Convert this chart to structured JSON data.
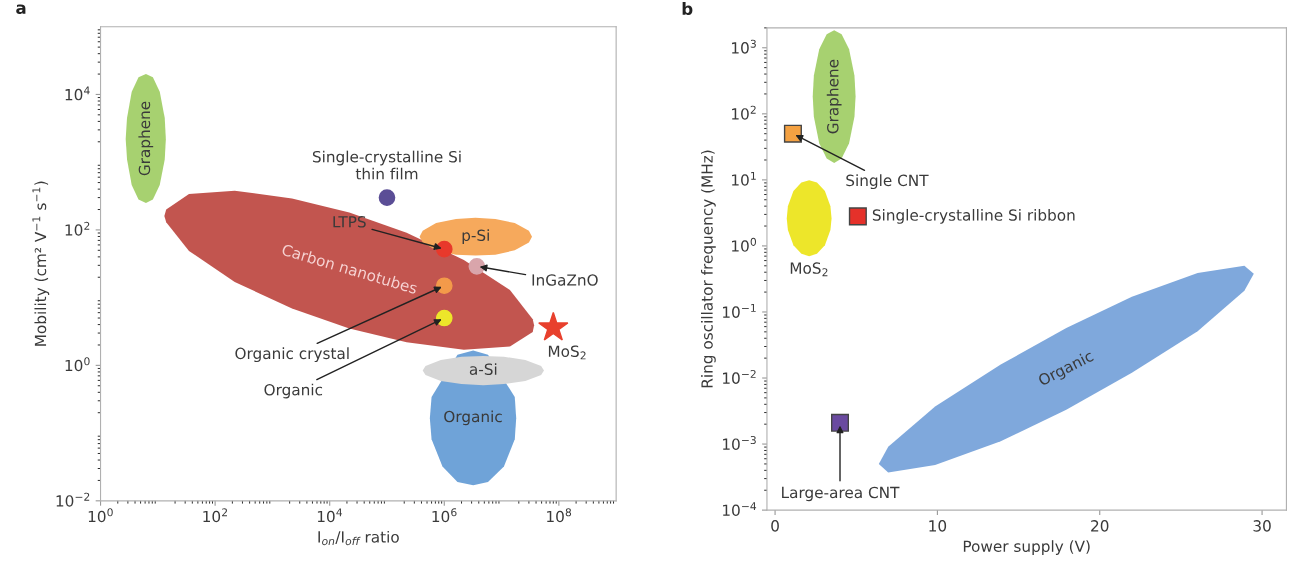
{
  "chart_data": [
    {
      "type": "scatter",
      "title": "a",
      "xlabel": "I$_{on}$/I$_{off}$ ratio",
      "ylabel": "Mobility (cm² V$^{−1}$ s$^{−1}$)",
      "log": "xy",
      "xlim": [
        1,
        1000000000
      ],
      "ylim": [
        0.01,
        100000
      ],
      "xticks": [
        {
          "value": 1,
          "label": "10$^{0}$"
        },
        {
          "value": 100,
          "label": "10$^{2}$"
        },
        {
          "value": 10000,
          "label": "10$^{4}$"
        },
        {
          "value": 1000000,
          "label": "10$^{6}$"
        },
        {
          "value": 100000000,
          "label": "10$^{8}$"
        }
      ],
      "yticks": [
        {
          "value": 0.01,
          "label": "10$^{−2}$"
        },
        {
          "value": 1,
          "label": "10$^{0}$"
        },
        {
          "value": 100,
          "label": "10$^{2}$"
        },
        {
          "value": 10000,
          "label": "10$^{4}$"
        }
      ],
      "series": [
        {
          "type": "area",
          "name": "Graphene",
          "color": "#a7d170",
          "x": [
            2.9,
            3.5,
            4.6,
            6.2,
            8.2,
            10.8,
            13.2,
            13.8,
            13.2,
            10.8,
            8.2,
            6.2,
            4.6,
            3.5,
            2.9,
            2.75
          ],
          "values": [
            4500,
            11000,
            18000,
            20000,
            18000,
            11000,
            4500,
            2200,
            1100,
            460,
            280,
            250,
            280,
            460,
            1100,
            2200
          ]
        },
        {
          "type": "area",
          "name": "Carbon nanotubes",
          "color": "#c2554f",
          "x": [
            14,
            35,
            220,
            2200,
            22000,
            220000,
            2200000,
            14000000,
            35000000,
            37000000,
            35000000,
            14000000,
            2200000,
            220000,
            22000,
            2200,
            220,
            35,
            14,
            13
          ],
          "values": [
            200,
            340,
            380,
            290,
            180,
            91,
            36,
            13,
            4.8,
            3.9,
            3.1,
            1.9,
            1.7,
            2.2,
            3.5,
            6.9,
            17,
            49,
            130,
            160
          ]
        },
        {
          "type": "area",
          "name": "Organic",
          "color": "#6fa3d8",
          "x": [
            600000,
            930000,
            1700000,
            3200000,
            5800000,
            11000000,
            17000000,
            18000000,
            17000000,
            11000000,
            5800000,
            3200000,
            1700000,
            930000,
            600000,
            560000
          ],
          "values": [
            0.34,
            null,
            1.44,
            1.66,
            1.44,
            null,
            0.34,
            0.166,
            0.081,
            0.032,
            0.019,
            0.017,
            0.019,
            0.032,
            0.081,
            0.166
          ]
        },
        {
          "type": "area",
          "name": "a-Si",
          "color": "#d6d6d6",
          "x": [
            470000,
            870000,
            2000000,
            4800000,
            11000000,
            26000000,
            49000000,
            55000000,
            49000000,
            26000000,
            11000000,
            4800000,
            2000000,
            870000,
            470000,
            420000
          ],
          "values": [
            0.98,
            1.2,
            1.34,
            1.38,
            1.34,
            1.2,
            0.98,
            0.84,
            0.72,
            0.59,
            0.53,
            0.51,
            0.53,
            0.59,
            0.72,
            0.84
          ]
        },
        {
          "type": "area",
          "name": "p-Si",
          "color": "#f6a95c",
          "x": [
            420000,
            720000,
            1600000,
            3500000,
            7800000,
            17000000,
            30000000,
            34000000,
            30000000,
            17000000,
            7800000,
            3500000,
            1600000,
            720000,
            420000,
            370000
          ],
          "values": [
            97,
            126,
            145,
            151,
            145,
            126,
            97,
            79,
            65,
            50,
            43,
            42,
            43,
            50,
            65,
            79
          ]
        },
        {
          "marker": "circle",
          "color": "#5b4e96",
          "x": [
            100000
          ],
          "values": [
            300
          ]
        },
        {
          "marker": "circle",
          "color": "#e8392b",
          "x": [
            1000000
          ],
          "values": [
            52
          ]
        },
        {
          "marker": "circle",
          "color": "#d9a5ab",
          "x": [
            3700000
          ],
          "values": [
            29
          ]
        },
        {
          "marker": "circle",
          "color": "#f39a4a",
          "x": [
            1000000
          ],
          "values": [
            15
          ]
        },
        {
          "marker": "circle",
          "color": "#ede62a",
          "x": [
            1000000
          ],
          "values": [
            5.0
          ]
        },
        {
          "marker": "star",
          "color": "#e8402d",
          "x": [
            80000000
          ],
          "values": [
            3.6
          ]
        }
      ],
      "annotations": [
        {
          "text": "Single-crystalline Si\nthin film",
          "x": 100000,
          "y": 300
        },
        {
          "text": "LTPS",
          "x": 1000000,
          "y": 52
        },
        {
          "text": "InGaZnO",
          "x": 3700000,
          "y": 29
        },
        {
          "text": "Organic crystal",
          "x": 1000000,
          "y": 15
        },
        {
          "text": "Organic",
          "x": 1000000,
          "y": 5.0
        },
        {
          "text": "MoS$_{2}$",
          "x": 80000000,
          "y": 3.6
        }
      ]
    },
    {
      "type": "scatter",
      "title": "b",
      "xlabel": "Power supply (V)",
      "ylabel": "Ring oscillator frequency (MHz)",
      "log": "y",
      "xlim": [
        -0.5,
        31.5
      ],
      "ylim": [
        0.0001,
        2000
      ],
      "xticks": [
        0,
        10,
        20,
        30
      ],
      "yticks": [
        {
          "value": 0.0001,
          "label": "10$^{−4}$"
        },
        {
          "value": 0.001,
          "label": "10$^{−3}$"
        },
        {
          "value": 0.01,
          "label": "10$^{−2}$"
        },
        {
          "value": 0.1,
          "label": "10$^{−1}$"
        },
        {
          "value": 1,
          "label": "10$^{0}$"
        },
        {
          "value": 10,
          "label": "10$^{1}$"
        },
        {
          "value": 100,
          "label": "10$^{2}$"
        },
        {
          "value": 1000,
          "label": "10$^{3}$"
        }
      ],
      "series": [
        {
          "type": "area",
          "name": "Graphene",
          "color": "#a7d170",
          "x": [
            2.39,
            2.72,
            3.18,
            3.64,
            4.1,
            4.56,
            4.89,
            4.96,
            4.89,
            4.56,
            4.1,
            3.64,
            3.18,
            2.72,
            2.39,
            2.32
          ],
          "values": [
            380,
            950,
            1600,
            1840,
            1600,
            950,
            380,
            184,
            90,
            36,
            21,
            18,
            21,
            36,
            90,
            184
          ]
        },
        {
          "type": "area",
          "name": "MoS$_{2}$",
          "color": "#ede62a",
          "x": [
            0.79,
            1.13,
            1.62,
            2.1,
            2.58,
            3.07,
            3.41,
            3.48,
            3.41,
            3.07,
            2.58,
            2.1,
            1.62,
            1.13,
            0.79,
            0.72
          ],
          "values": [
            4.0,
            6.8,
            9.1,
            9.9,
            9.1,
            6.8,
            4.0,
            2.6,
            1.74,
            1.02,
            0.76,
            0.7,
            0.76,
            1.02,
            1.74,
            2.6
          ]
        },
        {
          "type": "area",
          "name": "Organic",
          "color": "#7fa8dc",
          "x": [
            6.97,
            9.86,
            13.9,
            17.94,
            21.98,
            26.03,
            28.91,
            29.49,
            28.91,
            26.03,
            21.98,
            17.94,
            13.9,
            9.86,
            6.97,
            6.39
          ],
          "values": [
            0.00091,
            0.0037,
            0.016,
            0.057,
            0.17,
            0.39,
            0.5,
            0.38,
            0.21,
            0.051,
            0.012,
            0.0033,
            0.0011,
            0.00048,
            0.00037,
            0.0005
          ]
        },
        {
          "marker": "square",
          "color": "#f4a142",
          "x": [
            1.1
          ],
          "values": [
            50
          ]
        },
        {
          "marker": "square",
          "color": "#e5312a",
          "x": [
            5.1
          ],
          "values": [
            2.8
          ]
        },
        {
          "marker": "square",
          "color": "#6a4aa0",
          "x": [
            4
          ],
          "values": [
            0.0021
          ]
        }
      ],
      "annotations": [
        {
          "text": "Single CNT",
          "x": 1.1,
          "y": 50
        },
        {
          "text": "Single-crystalline Si ribbon",
          "x": 5.1,
          "y": 2.8
        },
        {
          "text": "Large-area CNT",
          "x": 4,
          "y": 0.0021
        }
      ]
    }
  ]
}
